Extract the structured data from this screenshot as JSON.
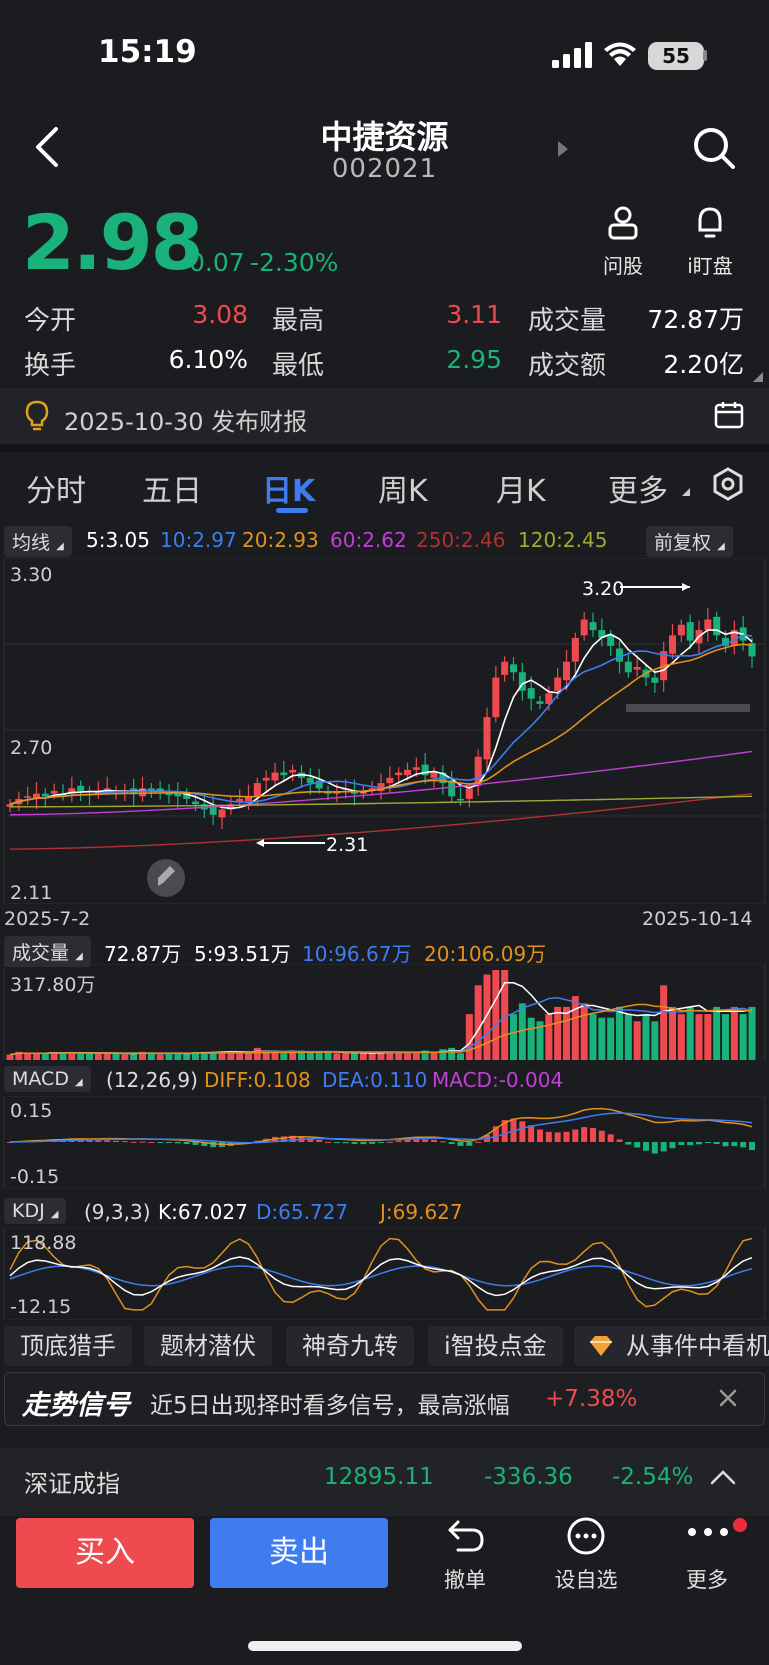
{
  "status": {
    "time": "15:19",
    "battery": "55"
  },
  "header": {
    "name": "中捷资源",
    "code": "002021"
  },
  "quote": {
    "price": "2.98",
    "change": "-0.07",
    "change_pct": "-2.30%",
    "ask_label": "问股",
    "watch_label": "i盯盘"
  },
  "stats": {
    "open_label": "今开",
    "open": "3.08",
    "high_label": "最高",
    "high": "3.11",
    "volume_label": "成交量",
    "volume": "72.87万",
    "turnover_label": "换手",
    "turnover": "6.10%",
    "low_label": "最低",
    "low": "2.95",
    "amount_label": "成交额",
    "amount": "2.20亿"
  },
  "report": {
    "text": "2025-10-30 发布财报"
  },
  "tabs": [
    "分时",
    "五日",
    "日K",
    "周K",
    "月K",
    "更多"
  ],
  "colors": {
    "up": "#ef4a50",
    "down": "#19b27b",
    "accent": "#3f7cf0",
    "bg": "#1b1c20"
  },
  "ma": {
    "chip": "均线",
    "items": [
      {
        "text": "5:3.05",
        "color": "#ffffff"
      },
      {
        "text": "10:2.97",
        "color": "#3f7cf0"
      },
      {
        "text": "20:2.93",
        "color": "#e0921c"
      },
      {
        "text": "60:2.62",
        "color": "#c23fd8"
      },
      {
        "text": "250:2.46",
        "color": "#b03232"
      },
      {
        "text": "120:2.45",
        "color": "#a2a833"
      }
    ],
    "adjust": "前复权"
  },
  "kline": {
    "y_top": "3.30",
    "y_mid": "2.70",
    "y_bottom": "2.11",
    "start_date": "2025-7-2",
    "end_date": "2025-10-14",
    "max_label": "3.20",
    "min_label": "2.31"
  },
  "volume_panel": {
    "chip": "成交量",
    "current": "72.87万",
    "ma5": "5:93.51万",
    "ma10": "10:96.67万",
    "ma20": "20:106.09万",
    "y_top": "317.80万"
  },
  "macd": {
    "chip": "MACD",
    "params": "(12,26,9)",
    "diff": "DIFF:0.108",
    "dea": "DEA:0.110",
    "macd": "MACD:-0.004",
    "y_top": "0.15",
    "y_bottom": "-0.15"
  },
  "kdj": {
    "chip": "KDJ",
    "params": "(9,3,3)",
    "k": "K:67.027",
    "d": "D:65.727",
    "j": "J:69.627",
    "y_top": "118.88",
    "y_bottom": "-12.15"
  },
  "features": [
    "顶底猎手",
    "题材潜伏",
    "神奇九转",
    "i智投点金",
    "从事件中看机"
  ],
  "signal": {
    "title": "走势信号",
    "text": "近5日出现择时看多信号，最高涨幅",
    "gain": "+7.38%"
  },
  "index": {
    "name": "深证成指",
    "value": "12895.11",
    "change": "-336.36",
    "change_pct": "-2.54%"
  },
  "actions": {
    "buy": "买入",
    "sell": "卖出",
    "cancel": "撤单",
    "watchlist": "设自选",
    "more": "更多"
  },
  "chart_data": {
    "type": "candlestick",
    "x_range": [
      "2025-7-2",
      "2025-10-14"
    ],
    "ylim": [
      2.11,
      3.3
    ],
    "max": 3.2,
    "min": 2.31,
    "close_series": [
      2.42,
      2.44,
      2.45,
      2.46,
      2.45,
      2.47,
      2.46,
      2.48,
      2.47,
      2.46,
      2.47,
      2.48,
      2.47,
      2.47,
      2.46,
      2.48,
      2.47,
      2.47,
      2.46,
      2.45,
      2.44,
      2.42,
      2.4,
      2.38,
      2.4,
      2.42,
      2.44,
      2.45,
      2.5,
      2.52,
      2.54,
      2.53,
      2.55,
      2.52,
      2.5,
      2.48,
      2.46,
      2.47,
      2.48,
      2.46,
      2.47,
      2.48,
      2.5,
      2.52,
      2.54,
      2.55,
      2.56,
      2.53,
      2.54,
      2.5,
      2.45,
      2.44,
      2.48,
      2.6,
      2.75,
      2.9,
      2.96,
      2.92,
      2.85,
      2.82,
      2.8,
      2.84,
      2.9,
      2.96,
      3.05,
      3.12,
      3.08,
      3.05,
      3.02,
      2.96,
      2.92,
      2.94,
      2.9,
      2.88,
      3.0,
      3.06,
      3.1,
      3.04,
      3.08,
      3.12,
      3.06,
      3.02,
      3.08,
      3.04,
      2.98
    ]
  }
}
